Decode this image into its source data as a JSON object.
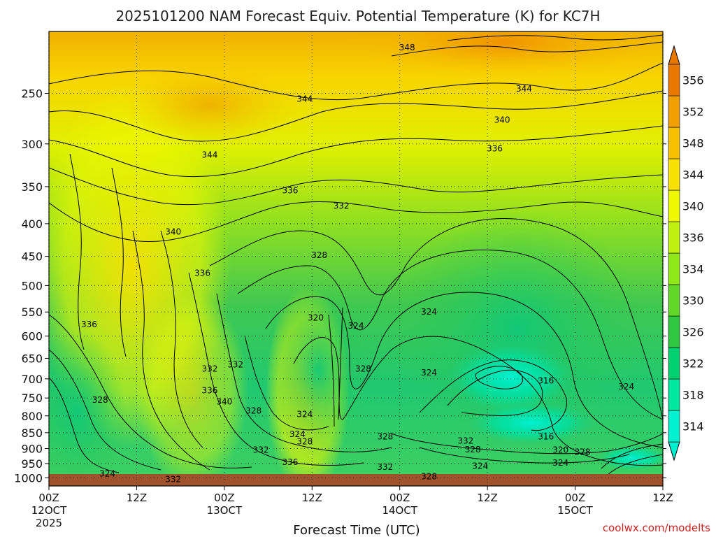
{
  "chart_data": {
    "type": "heatmap",
    "title": "2025101200 NAM Forecast Equiv. Potential Temperature (K) for KC7H",
    "xlabel": "Forecast Time (UTC)",
    "ylabel": "",
    "credit": "coolwx.com/modelts",
    "y_scale": "log",
    "y_inverted": true,
    "ylim": [
      1030,
      200
    ],
    "y_ticks": [
      250,
      300,
      350,
      400,
      450,
      500,
      550,
      600,
      650,
      700,
      750,
      800,
      850,
      900,
      950,
      1000
    ],
    "x_ticks": [
      {
        "hour": 0,
        "line1": "00Z",
        "line2": "12OCT",
        "line3": "2025"
      },
      {
        "hour": 12,
        "line1": "12Z",
        "line2": "",
        "line3": ""
      },
      {
        "hour": 24,
        "line1": "00Z",
        "line2": "13OCT",
        "line3": ""
      },
      {
        "hour": 36,
        "line1": "12Z",
        "line2": "",
        "line3": ""
      },
      {
        "hour": 48,
        "line1": "00Z",
        "line2": "14OCT",
        "line3": ""
      },
      {
        "hour": 60,
        "line1": "12Z",
        "line2": "",
        "line3": ""
      },
      {
        "hour": 72,
        "line1": "00Z",
        "line2": "15OCT",
        "line3": ""
      },
      {
        "hour": 84,
        "line1": "12Z",
        "line2": "",
        "line3": ""
      }
    ],
    "xlim": [
      0,
      84
    ],
    "grid": true,
    "colorbar": {
      "levels": [
        314,
        318,
        322,
        326,
        330,
        334,
        336,
        340,
        344,
        348,
        352,
        356
      ],
      "colors": [
        "#00f0d0",
        "#00e8a0",
        "#00d070",
        "#30c840",
        "#60d828",
        "#90e818",
        "#c0f010",
        "#f0f800",
        "#f8e000",
        "#f8c000",
        "#f0a000",
        "#e87800"
      ],
      "labels": [
        "314",
        "318",
        "322",
        "326",
        "330",
        "334",
        "336",
        "340",
        "344",
        "348",
        "352",
        "356"
      ]
    },
    "contour_labels": [
      {
        "hour": 49,
        "p": 212,
        "text": "348"
      },
      {
        "hour": 35,
        "p": 255,
        "text": "344"
      },
      {
        "hour": 65,
        "p": 246,
        "text": "344"
      },
      {
        "hour": 62,
        "p": 275,
        "text": "340"
      },
      {
        "hour": 61,
        "p": 305,
        "text": "336"
      },
      {
        "hour": 22,
        "p": 312,
        "text": "344"
      },
      {
        "hour": 33,
        "p": 355,
        "text": "336"
      },
      {
        "hour": 40,
        "p": 375,
        "text": "332"
      },
      {
        "hour": 17,
        "p": 412,
        "text": "340"
      },
      {
        "hour": 37,
        "p": 448,
        "text": "328"
      },
      {
        "hour": 21,
        "p": 478,
        "text": "336"
      },
      {
        "hour": 5.5,
        "p": 575,
        "text": "336"
      },
      {
        "hour": 36.5,
        "p": 562,
        "text": "320"
      },
      {
        "hour": 42,
        "p": 578,
        "text": "324"
      },
      {
        "hour": 52,
        "p": 550,
        "text": "324"
      },
      {
        "hour": 22,
        "p": 675,
        "text": "332"
      },
      {
        "hour": 25.5,
        "p": 665,
        "text": "332"
      },
      {
        "hour": 43,
        "p": 675,
        "text": "328"
      },
      {
        "hour": 52,
        "p": 685,
        "text": "324"
      },
      {
        "hour": 68,
        "p": 705,
        "text": "316"
      },
      {
        "hour": 79,
        "p": 720,
        "text": "324"
      },
      {
        "hour": 22,
        "p": 730,
        "text": "336"
      },
      {
        "hour": 24,
        "p": 760,
        "text": "340"
      },
      {
        "hour": 7,
        "p": 755,
        "text": "328"
      },
      {
        "hour": 28,
        "p": 785,
        "text": "328"
      },
      {
        "hour": 35,
        "p": 795,
        "text": "324"
      },
      {
        "hour": 34,
        "p": 855,
        "text": "324"
      },
      {
        "hour": 35,
        "p": 878,
        "text": "328"
      },
      {
        "hour": 46,
        "p": 862,
        "text": "328"
      },
      {
        "hour": 57,
        "p": 875,
        "text": "332"
      },
      {
        "hour": 58,
        "p": 903,
        "text": "328"
      },
      {
        "hour": 68,
        "p": 862,
        "text": "316"
      },
      {
        "hour": 70,
        "p": 905,
        "text": "320"
      },
      {
        "hour": 73,
        "p": 912,
        "text": "328"
      },
      {
        "hour": 29,
        "p": 905,
        "text": "332"
      },
      {
        "hour": 33,
        "p": 945,
        "text": "336"
      },
      {
        "hour": 8,
        "p": 985,
        "text": "324"
      },
      {
        "hour": 17,
        "p": 1005,
        "text": "332"
      },
      {
        "hour": 46,
        "p": 962,
        "text": "332"
      },
      {
        "hour": 59,
        "p": 958,
        "text": "324"
      },
      {
        "hour": 70,
        "p": 948,
        "text": "324"
      },
      {
        "hour": 52,
        "p": 995,
        "text": "328"
      }
    ]
  }
}
